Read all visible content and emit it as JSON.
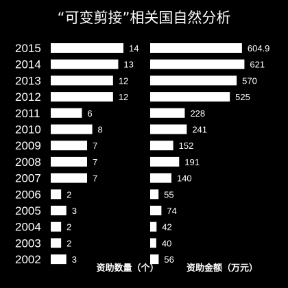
{
  "chart_data": {
    "type": "bar",
    "title": "“可变剪接”相关国自然分析",
    "categories": [
      "2015",
      "2014",
      "2013",
      "2012",
      "2011",
      "2010",
      "2009",
      "2008",
      "2007",
      "2006",
      "2005",
      "2004",
      "2003",
      "2002"
    ],
    "series": [
      {
        "name": "资助数量（个）",
        "values": [
          14,
          13,
          12,
          12,
          6,
          8,
          7,
          7,
          7,
          2,
          3,
          2,
          2,
          3
        ],
        "color": "#ffffff"
      },
      {
        "name": "资助金额（万元）",
        "values": [
          604.9,
          621,
          570,
          525,
          228,
          241,
          152,
          191,
          140,
          55,
          74,
          42,
          40,
          56
        ],
        "color": "#ffffff"
      }
    ],
    "orientation": "horizontal",
    "background": "#000000",
    "grid": false,
    "legend": "none"
  }
}
